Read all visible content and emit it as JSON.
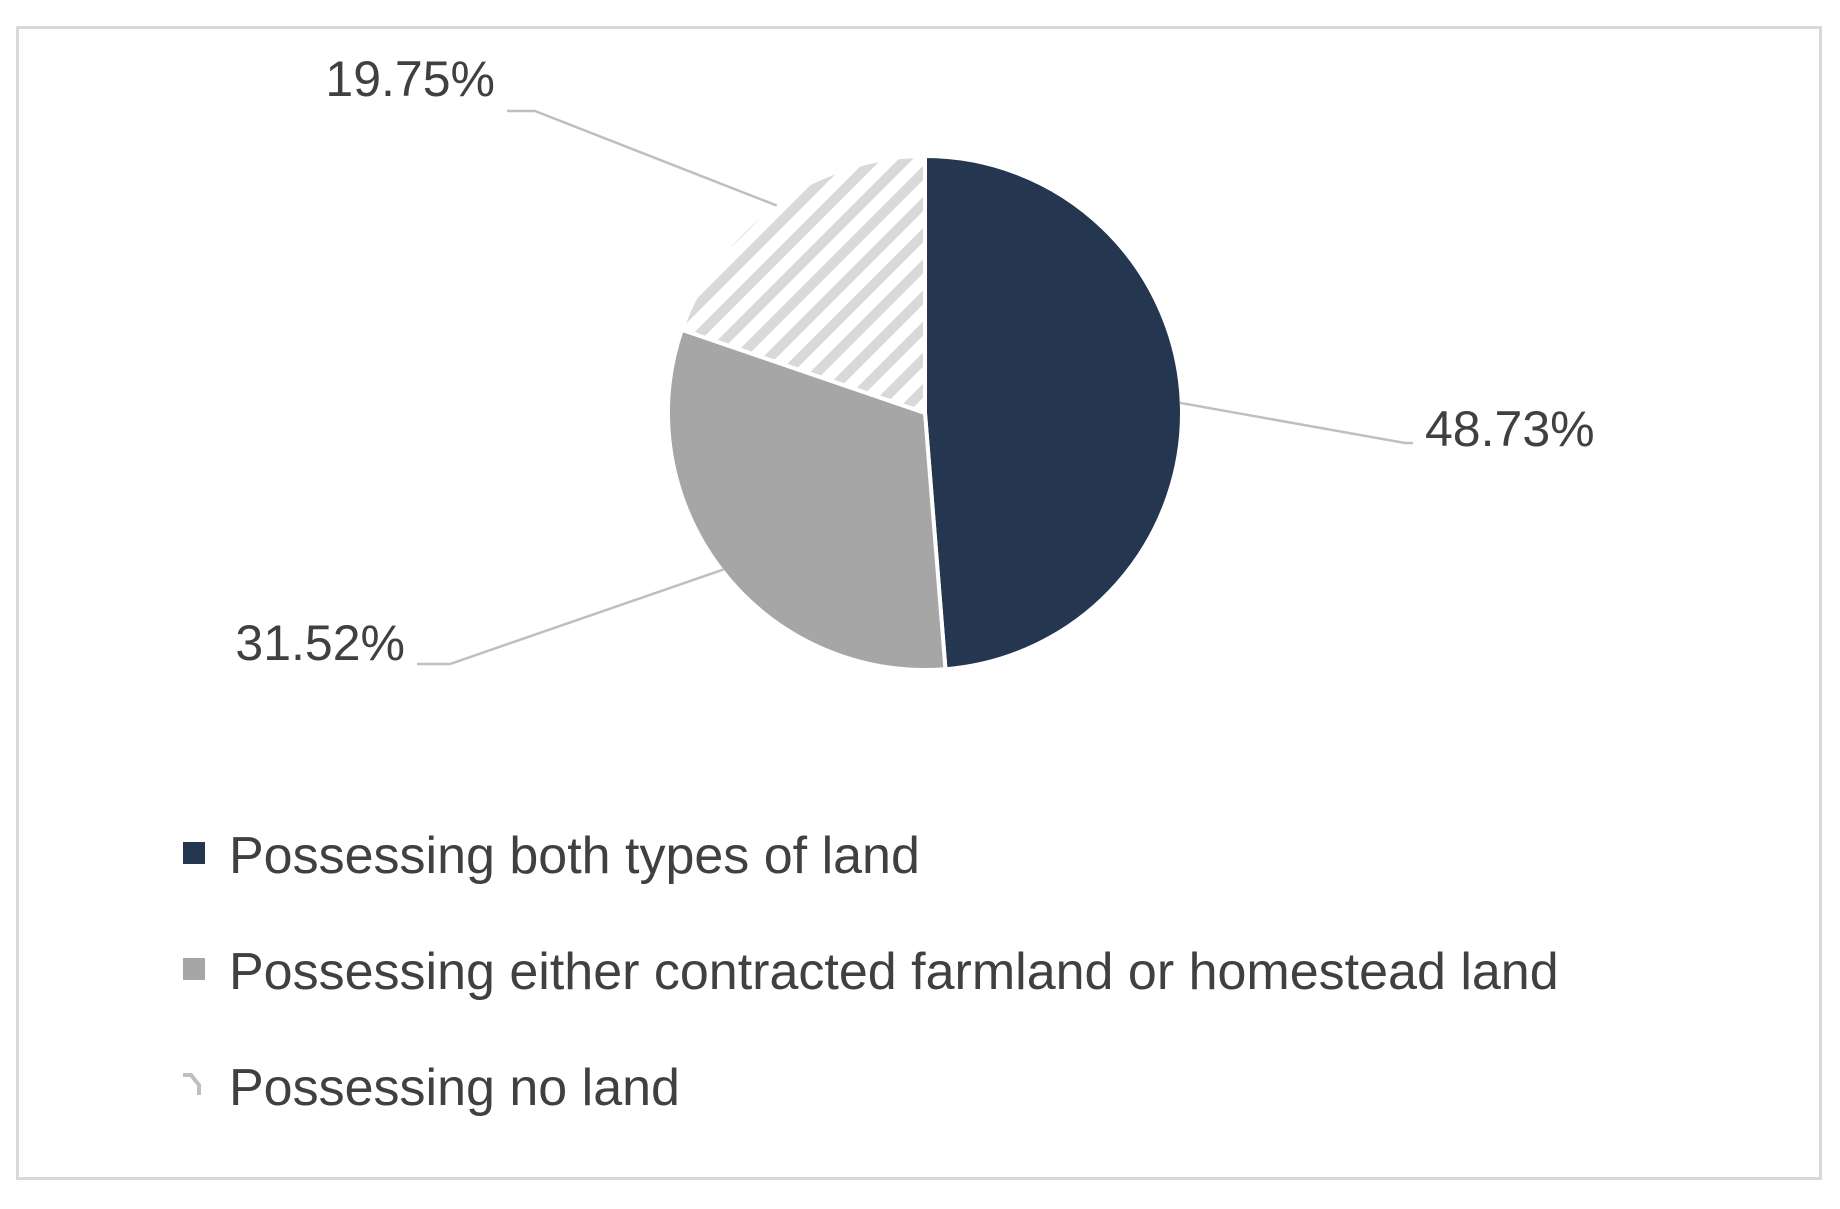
{
  "chart_data": {
    "type": "pie",
    "title": "",
    "start_angle_deg": 0,
    "direction": "clockwise",
    "legend_position": "bottom",
    "slices": [
      {
        "name": "Possessing both types of land",
        "value": 48.73,
        "label": "48.73%",
        "color": "#253750",
        "fill": "solid"
      },
      {
        "name": "Possessing either contracted farmland or homestead land",
        "value": 31.52,
        "label": "31.52%",
        "color": "#a6a6a6",
        "fill": "solid"
      },
      {
        "name": "Possessing no land",
        "value": 19.75,
        "label": "19.75%",
        "color": "#d9d9d9",
        "fill": "diagonal-stripes"
      }
    ]
  }
}
